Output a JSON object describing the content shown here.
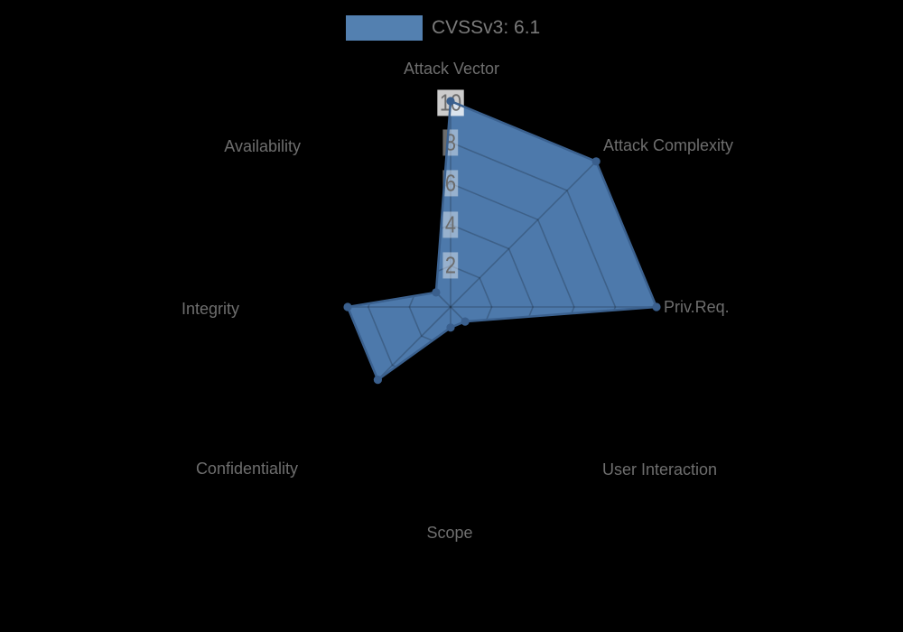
{
  "legend": {
    "label": "CVSSv3: 6.1"
  },
  "chart_data": {
    "type": "radar",
    "title": "CVSSv3: 6.1",
    "score_shown": "6.1",
    "axes": [
      "Attack Vector",
      "Attack Complexity",
      "Priv.Req.",
      "User Interaction",
      "Scope",
      "Confidentiality",
      "Integrity",
      "Availability"
    ],
    "series": [
      {
        "name": "CVSSv3: 6.1",
        "values": [
          10,
          10,
          10,
          1,
          1,
          5,
          5,
          1
        ]
      }
    ],
    "rmin": 0,
    "rmax": 10,
    "tick_labels": [
      "2",
      "4",
      "6",
      "8",
      "10"
    ],
    "grid": "octagonal web, spokes + rings at each tick, first axis at top, clockwise",
    "legend_position": "top-center",
    "markers": "filled circle on every vertex",
    "colors": {
      "background": "#000000",
      "fill": "#4d79ab",
      "outline": "#3b618f",
      "marker": "#3a5f8d",
      "swatch": "#5380b0",
      "grid_line": "rgba(0,0,0,0.20)",
      "label_text": "#6e6e6e",
      "tick_text": "#6b6b6b",
      "legend_text": "#7a7a7a",
      "tick_backdrop": "rgba(255,255,255,0.42)",
      "tick_backdrop_max": "rgba(255,255,255,0.80)"
    }
  }
}
